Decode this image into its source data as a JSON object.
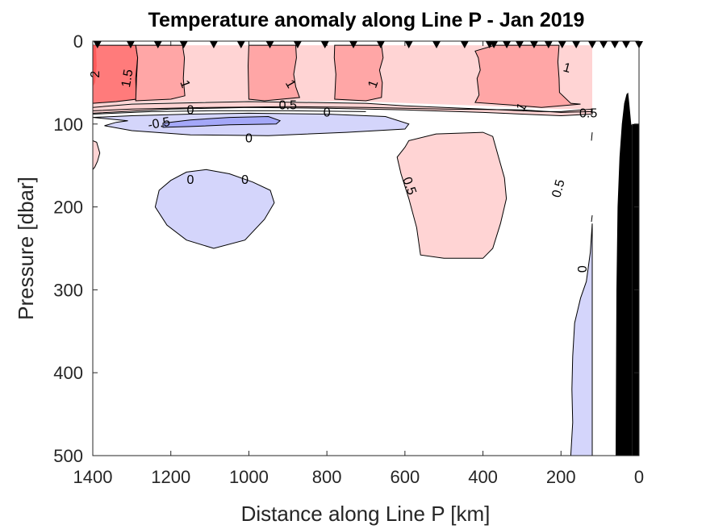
{
  "chart_data": {
    "type": "contour",
    "title": "Temperature anomaly along Line P - Jan 2019",
    "xlabel": "Distance along Line P [km]",
    "ylabel": "Pressure [dbar]",
    "xlim": [
      1400,
      0
    ],
    "ylim": [
      0,
      500
    ],
    "x_reversed": true,
    "y_reversed": true,
    "xticks": [
      1400,
      1200,
      1000,
      800,
      600,
      400,
      200,
      0
    ],
    "yticks": [
      0,
      100,
      200,
      300,
      400,
      500
    ],
    "grid": false,
    "contour_levels": [
      -0.5,
      0,
      0.5,
      1,
      1.5,
      2
    ],
    "colors": {
      "below_-0.5": "#a4a8f8",
      "-0.5_to_0": "#d4d5fb",
      "0_to_0.5": "#ffffff",
      "0.5_to_1": "#ffd4d4",
      "1_to_1.5": "#ffa6a6",
      "1.5_to_2": "#ff7b7b",
      "above_2": "#ff5a5a",
      "bathymetry": "#000000"
    },
    "station_markers_km": [
      1388,
      1303,
      1233,
      1167,
      1090,
      1020,
      946,
      875,
      805,
      732,
      662,
      590,
      519,
      447,
      383,
      372,
      339,
      306,
      269,
      232,
      197,
      161,
      120,
      91,
      62,
      33,
      0
    ],
    "regions": [
      {
        "level_range": "1.5_to_2",
        "description": "Warm core near surface, 1400-1290 km, 0-75 dbar",
        "x_km": [
          1400,
          1290
        ],
        "p_dbar": [
          5,
          75
        ]
      },
      {
        "level_range": "1_to_1.5",
        "description": "Surface warm patch 1290-1170 km",
        "x_km": [
          1290,
          1170
        ],
        "p_dbar": [
          5,
          72
        ]
      },
      {
        "level_range": "1_to_1.5",
        "description": "Surface warm patch 1000-880 km",
        "x_km": [
          1000,
          880
        ],
        "p_dbar": [
          5,
          72
        ]
      },
      {
        "level_range": "1_to_1.5",
        "description": "Surface warm patch 780-660 km",
        "x_km": [
          780,
          660
        ],
        "p_dbar": [
          5,
          72
        ]
      },
      {
        "level_range": "1_to_1.5",
        "description": "Surface warm patch 420-200 km",
        "x_km": [
          420,
          200
        ],
        "p_dbar": [
          5,
          80
        ]
      },
      {
        "level_range": "0.5_to_1",
        "description": "Upper mixed layer band 1400-120 km",
        "x_km": [
          1400,
          120
        ],
        "p_dbar": [
          5,
          85
        ]
      },
      {
        "level_range": "-0.5_to_0",
        "description": "Cold lens 1400-590 km near 100 dbar",
        "x_km": [
          1400,
          590
        ],
        "p_dbar": [
          90,
          115
        ]
      },
      {
        "level_range": "below_-0.5",
        "description": "Colder core 1230-920 km near 95 dbar",
        "x_km": [
          1230,
          920
        ],
        "p_dbar": [
          88,
          102
        ]
      },
      {
        "level_range": "-0.5_to_0",
        "description": "Cold eddy 1240-920 km, 155-250 dbar",
        "x_km": [
          1240,
          920
        ],
        "p_dbar": [
          155,
          250
        ]
      },
      {
        "level_range": "0.5_to_1",
        "description": "Warm eddy 620-340 km, 110-265 dbar",
        "x_km": [
          620,
          340
        ],
        "p_dbar": [
          110,
          265
        ]
      },
      {
        "level_range": "0.5_to_1",
        "description": "Small warm patch at 1400 km, 120-155 dbar",
        "x_km": [
          1400,
          1360
        ],
        "p_dbar": [
          120,
          155
        ]
      },
      {
        "level_range": "-0.5_to_0",
        "description": "Slope cold band 200-120 km, 220-500 dbar",
        "x_km": [
          200,
          120
        ],
        "p_dbar": [
          220,
          500
        ]
      }
    ],
    "contour_labels": [
      "2",
      "1.5",
      "1",
      "1",
      "1",
      "1",
      "1",
      "0.5",
      "0",
      "0",
      "-0.5",
      "0",
      "0.5",
      "0",
      "0",
      "0.5",
      "0.5",
      "0"
    ],
    "bathymetry": {
      "description": "Continental slope near coast (0-60 km)",
      "x_km": [
        60,
        0
      ],
      "shallowest_p_dbar": 60
    }
  }
}
